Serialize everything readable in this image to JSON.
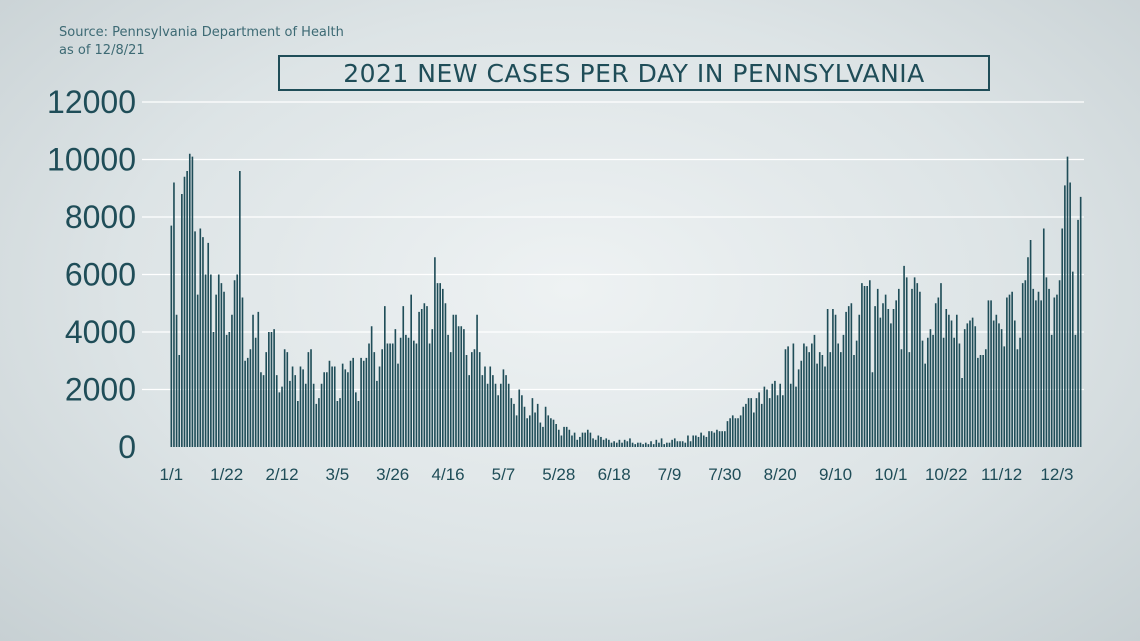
{
  "source": {
    "line1": "Source: Pennsylvania Department of Health",
    "line2": "as of 12/8/21"
  },
  "colors": {
    "bar": "#1f4d58",
    "grid": "#ffffff",
    "text": "#1f4d58"
  },
  "chart_data": {
    "type": "bar",
    "title": "2021 NEW CASES PER DAY IN PENNSYLVANIA",
    "xlabel": "",
    "ylabel": "",
    "ylim": [
      0,
      12000
    ],
    "yticks": [
      0,
      2000,
      4000,
      6000,
      8000,
      10000,
      12000
    ],
    "grid": true,
    "xtick_labels": [
      {
        "label": "1/1",
        "day": 0
      },
      {
        "label": "1/22",
        "day": 21
      },
      {
        "label": "2/12",
        "day": 42
      },
      {
        "label": "3/5",
        "day": 63
      },
      {
        "label": "3/26",
        "day": 84
      },
      {
        "label": "4/16",
        "day": 105
      },
      {
        "label": "5/7",
        "day": 126
      },
      {
        "label": "5/28",
        "day": 147
      },
      {
        "label": "6/18",
        "day": 168
      },
      {
        "label": "7/9",
        "day": 189
      },
      {
        "label": "7/30",
        "day": 210
      },
      {
        "label": "8/20",
        "day": 231
      },
      {
        "label": "9/10",
        "day": 252
      },
      {
        "label": "10/1",
        "day": 273
      },
      {
        "label": "10/22",
        "day": 294
      },
      {
        "label": "11/12",
        "day": 315
      },
      {
        "label": "12/3",
        "day": 336
      }
    ],
    "values": [
      7700,
      9200,
      4600,
      3200,
      8800,
      9400,
      9600,
      10200,
      10100,
      7500,
      5300,
      7600,
      7300,
      6000,
      7100,
      6000,
      4000,
      5300,
      6000,
      5700,
      5400,
      3900,
      4000,
      4600,
      5800,
      6000,
      9600,
      5200,
      3000,
      3100,
      3400,
      4600,
      3800,
      4700,
      2600,
      2500,
      3300,
      4000,
      4000,
      4100,
      2500,
      1900,
      2100,
      3400,
      3300,
      2300,
      2800,
      2500,
      1600,
      2800,
      2700,
      2200,
      3300,
      3400,
      2200,
      1500,
      1700,
      2200,
      2600,
      2600,
      3000,
      2800,
      2800,
      1600,
      1700,
      2900,
      2700,
      2600,
      3000,
      3100,
      1900,
      1600,
      3100,
      3000,
      3100,
      3600,
      4200,
      3300,
      2300,
      2800,
      3400,
      4900,
      3600,
      3600,
      3600,
      4100,
      2900,
      3800,
      4900,
      3900,
      3800,
      5300,
      3700,
      3600,
      4700,
      4800,
      5000,
      4900,
      3600,
      4100,
      6600,
      5700,
      5700,
      5500,
      5000,
      3900,
      3300,
      4600,
      4600,
      4200,
      4200,
      4100,
      3200,
      2500,
      3300,
      3400,
      4600,
      3300,
      2500,
      2800,
      2200,
      2800,
      2500,
      2200,
      1800,
      2200,
      2700,
      2500,
      2200,
      1700,
      1500,
      1100,
      2000,
      1800,
      1400,
      1000,
      1100,
      1700,
      1200,
      1500,
      850,
      700,
      1400,
      1100,
      1000,
      950,
      800,
      600,
      400,
      700,
      700,
      600,
      400,
      500,
      250,
      350,
      500,
      500,
      600,
      500,
      300,
      250,
      400,
      350,
      250,
      300,
      250,
      150,
      200,
      150,
      250,
      150,
      250,
      200,
      300,
      150,
      100,
      150,
      150,
      100,
      150,
      100,
      200,
      100,
      250,
      150,
      300,
      100,
      150,
      150,
      250,
      300,
      200,
      200,
      200,
      150,
      400,
      200,
      400,
      400,
      350,
      500,
      400,
      350,
      550,
      550,
      500,
      600,
      550,
      550,
      550,
      900,
      1000,
      1100,
      1000,
      1000,
      1100,
      1400,
      1500,
      1700,
      1700,
      1200,
      1700,
      1900,
      1500,
      2100,
      2000,
      1700,
      2200,
      2300,
      1800,
      2200,
      1800,
      3400,
      3500,
      2200,
      3600,
      2100,
      2700,
      3000,
      3600,
      3500,
      3300,
      3600,
      3900,
      2900,
      3300,
      3200,
      2800,
      4800,
      3300,
      4800,
      4600,
      3600,
      3300,
      3900,
      4700,
      4900,
      5000,
      3200,
      3700,
      4600,
      5700,
      5600,
      5600,
      5800,
      2600,
      4900,
      5500,
      4500,
      5000,
      5300,
      4800,
      4300,
      4800,
      5100,
      5500,
      3400,
      6300,
      5900,
      3300,
      5500,
      5900,
      5700,
      5400,
      3700,
      2900,
      3800,
      4100,
      3900,
      5000,
      5200,
      5700,
      3800,
      4800,
      4600,
      4400,
      3800,
      4600,
      3600,
      2400,
      4100,
      4300,
      4400,
      4500,
      4200,
      3100,
      3200,
      3200,
      3400,
      5100,
      5100,
      4400,
      4600,
      4300,
      4100,
      3500,
      5200,
      5300,
      5400,
      4400,
      3400,
      3800,
      5700,
      5800,
      6600,
      7200,
      5500,
      5100,
      5400,
      5100,
      7600,
      5900,
      5500,
      3900,
      5200,
      5300,
      5800,
      7600,
      9100,
      10100,
      9200,
      6100,
      3900,
      7900,
      8700
    ]
  }
}
